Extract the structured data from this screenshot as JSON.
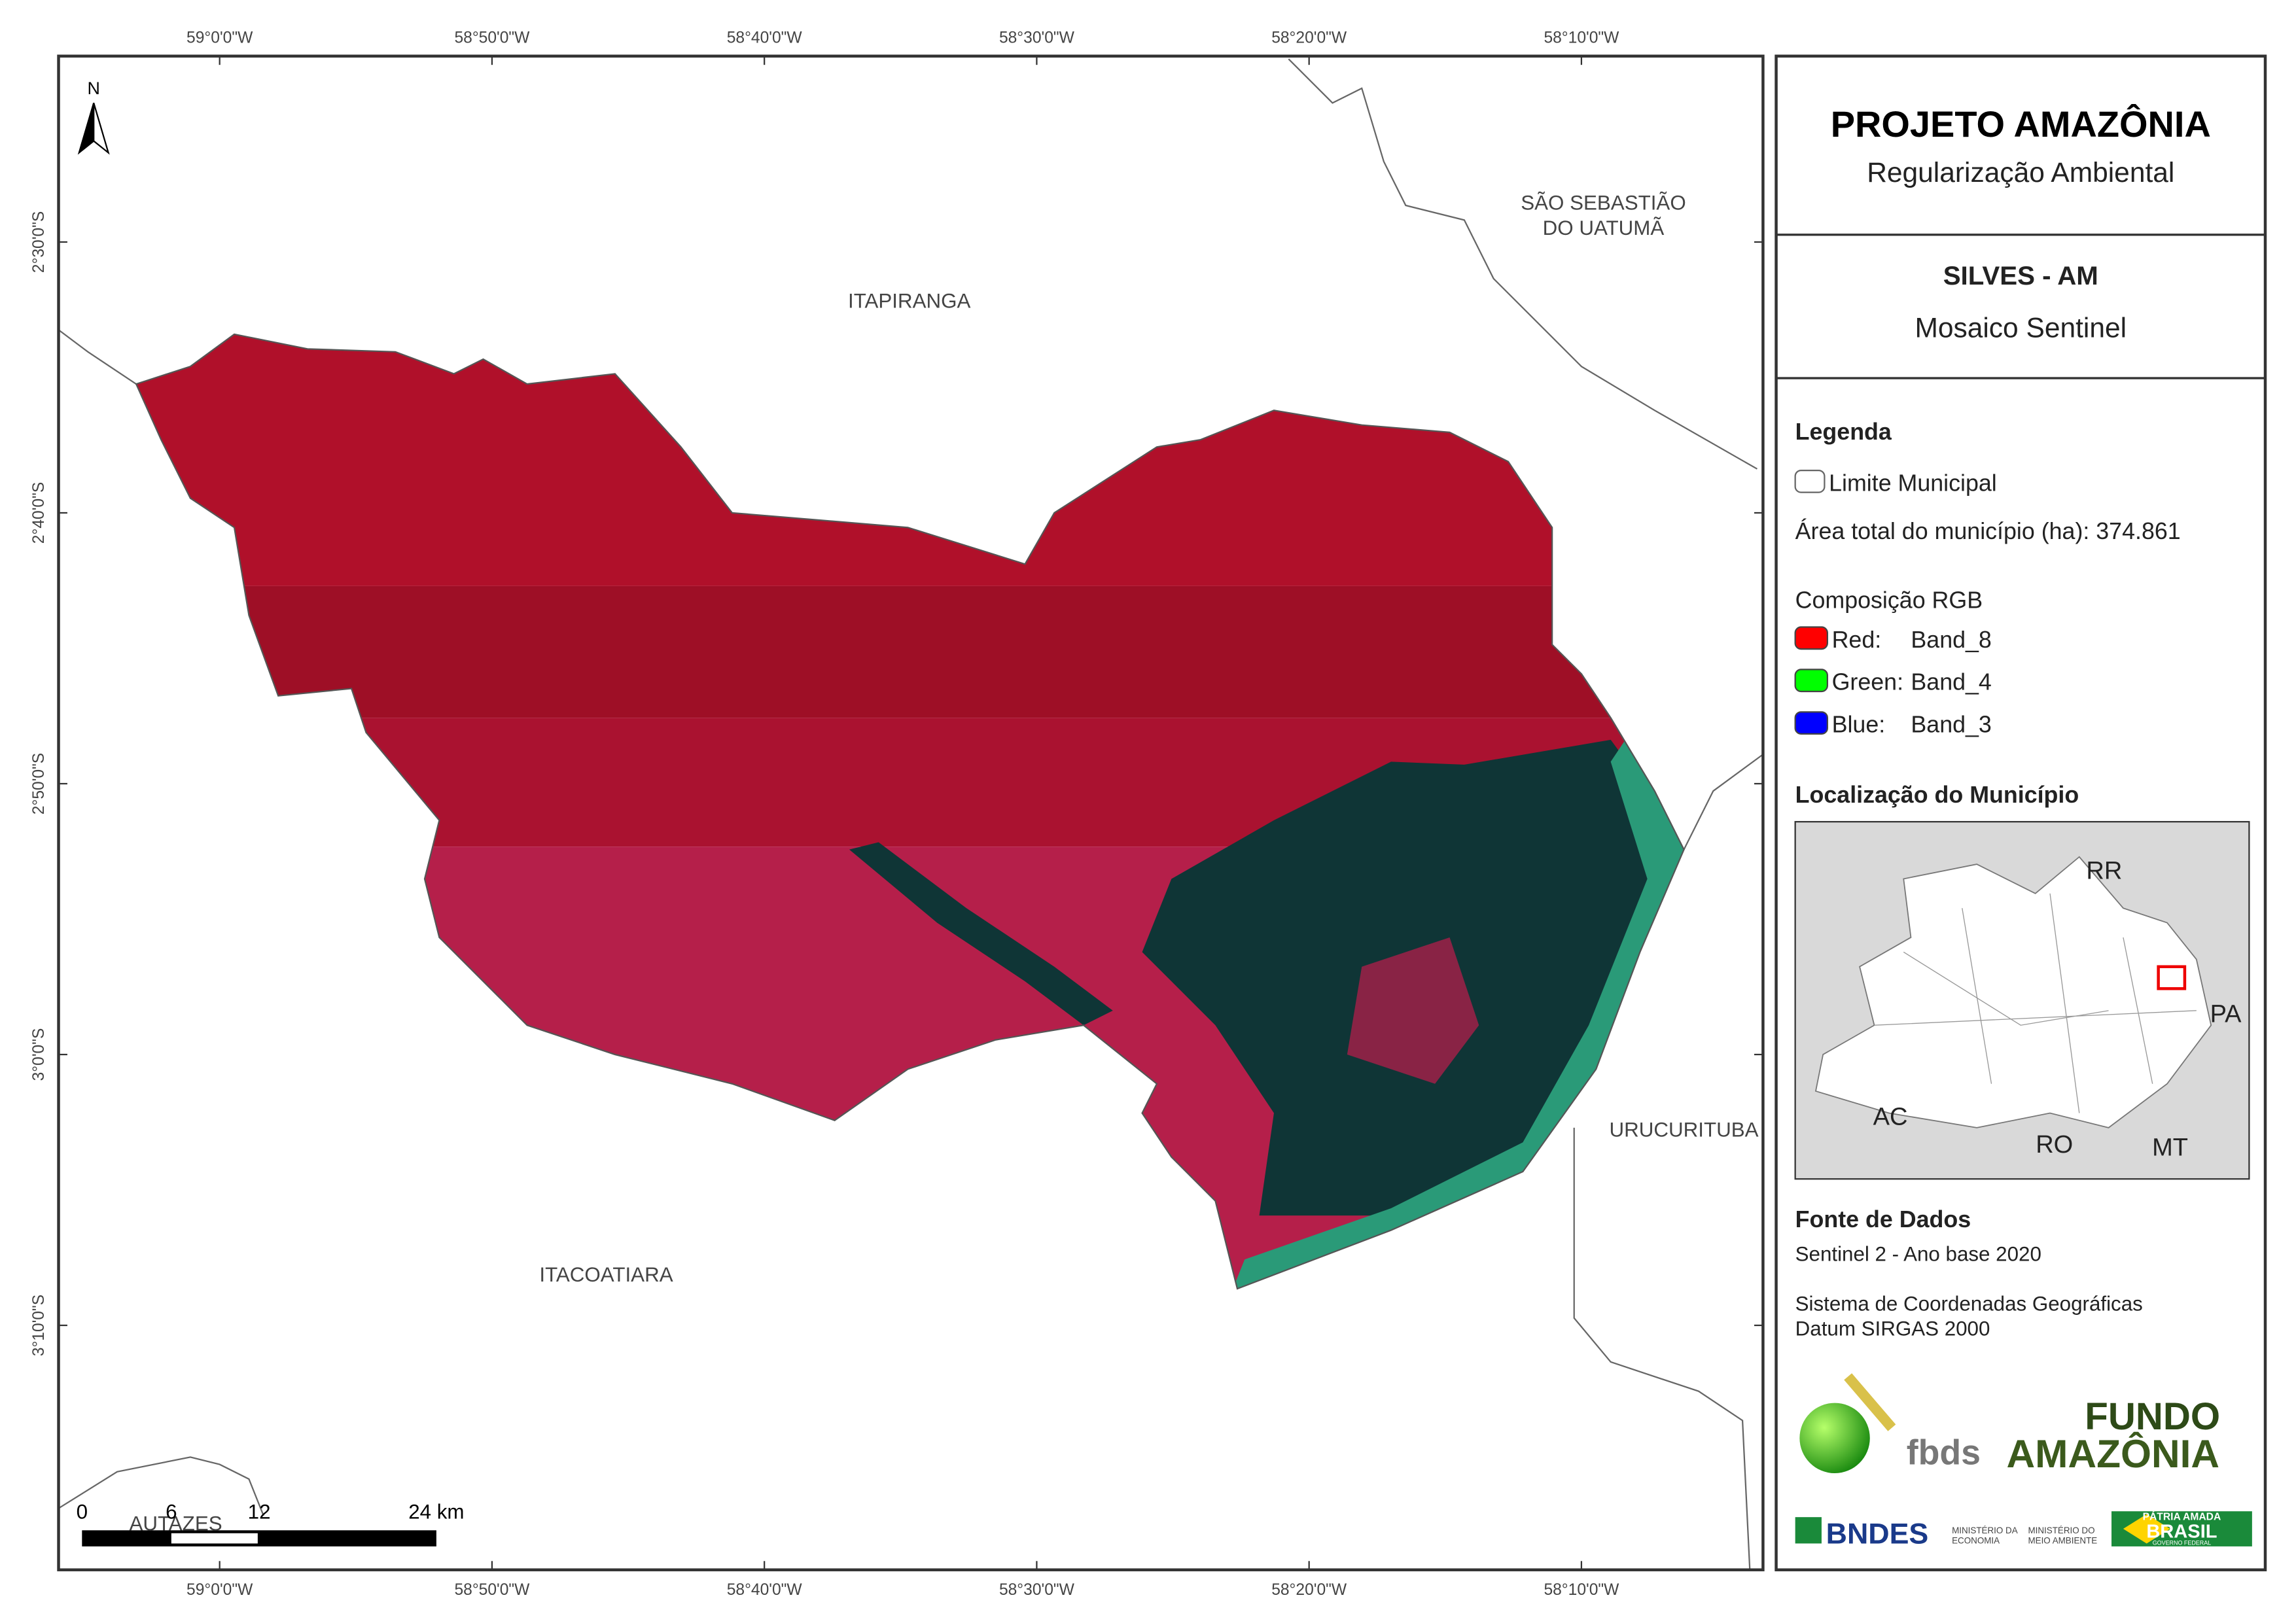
{
  "header": {
    "title": "PROJETO AMAZÔNIA",
    "subtitle": "Regularização Ambiental"
  },
  "map_title": {
    "title": "SILVES - AM",
    "subtitle": "Mosaico Sentinel"
  },
  "legend": {
    "title": "Legenda",
    "boundary": "Limite Municipal",
    "area": "Área total do município (ha): 374.861",
    "composition_title": "Composição RGB",
    "bands": [
      {
        "channel": "Red:",
        "band": "Band_8",
        "color": "#ff0000"
      },
      {
        "channel": "Green:",
        "band": "Band_4",
        "color": "#00ff00"
      },
      {
        "channel": "Blue:",
        "band": "Band_3",
        "color": "#0000ff"
      }
    ]
  },
  "location": {
    "title": "Localização do Município",
    "states": [
      "RR",
      "PA",
      "AC",
      "RO",
      "MT"
    ]
  },
  "sources": {
    "title": "Fonte de Dados",
    "imagery": "Sentinel 2 - Ano base 2020",
    "crs": [
      "Sistema de Coordenadas Geográficas",
      "Datum SIRGAS 2000"
    ]
  },
  "logos": {
    "fbds": "fbds",
    "fundo": [
      "FUNDO",
      "AMAZÔNIA"
    ],
    "bndes": "BNDES",
    "ministries": [
      "MINISTÉRIO DA",
      "ECONOMIA",
      "MINISTÉRIO DO",
      "MEIO AMBIENTE"
    ],
    "brasil": [
      "PÁTRIA AMADA",
      "BRASIL",
      "GOVERNO FEDERAL"
    ]
  },
  "map": {
    "north": "N",
    "longitudes": [
      "59°0'0\"W",
      "58°50'0\"W",
      "58°40'0\"W",
      "58°30'0\"W",
      "58°20'0\"W",
      "58°10'0\"W"
    ],
    "latitudes": [
      "2°30'0\"S",
      "2°40'0\"S",
      "2°50'0\"S",
      "3°0'0\"S",
      "3°10'0\"S"
    ],
    "places": [
      "SÃO SEBASTIÃO",
      "DO UATUMÃ",
      "ITAPIRANGA",
      "URUCURITUBA",
      "ITACOATIARA",
      "AUTAZES"
    ],
    "scale": [
      "0",
      "6",
      "12",
      "24 km"
    ]
  }
}
